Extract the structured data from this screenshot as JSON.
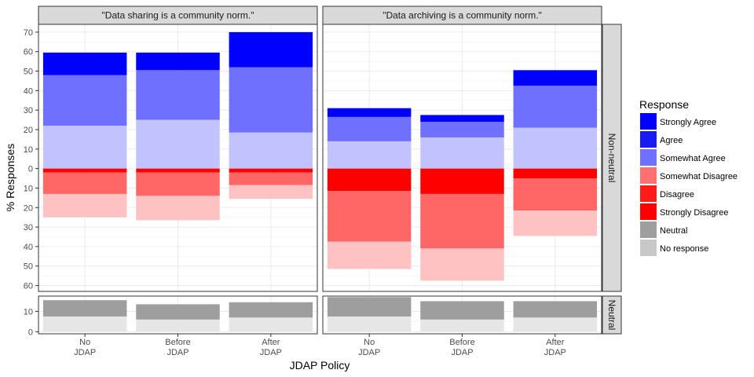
{
  "chart_data": {
    "type": "bar",
    "xlabel": "JDAP Policy",
    "ylabel": "% Responses",
    "categories": [
      [
        "No",
        "JDAP"
      ],
      [
        "Before",
        "JDAP"
      ],
      [
        "After",
        "JDAP"
      ]
    ],
    "column_facets": [
      "\"Data sharing is a community norm.\"",
      "\"Data archiving is a community norm.\""
    ],
    "row_facets": [
      "Non-neutral",
      "Neutral"
    ],
    "legend": {
      "title": "Response",
      "position": "right",
      "items": [
        {
          "label": "Strongly Agree",
          "color": "#0000ff"
        },
        {
          "label": "Agree",
          "color": "#1a1af5"
        },
        {
          "label": "Somewhat Agree",
          "color": "#7070ff"
        },
        {
          "label": "Somewhat Disagree",
          "color": "#ff7070"
        },
        {
          "label": "Disagree",
          "color": "#ff1a1a"
        },
        {
          "label": "Strongly Disagree",
          "color": "#ff0000"
        },
        {
          "label": "Neutral",
          "color": "#9e9e9e"
        },
        {
          "label": "No response",
          "color": "#c8c8c8"
        }
      ]
    },
    "colors": {
      "agree_layers": [
        "#c2c2ff",
        "#7070ff",
        "#0000ff"
      ],
      "disagree_layers": [
        "#ff0000",
        "#ff6666",
        "#ffc2c2"
      ],
      "neutral_layers": [
        "#e6e6e6",
        "#9e9e9e"
      ],
      "strip_fill": "#d9d9d9",
      "panel_grid": "#ebebeb"
    },
    "non_neutral": {
      "ylim": [
        -63,
        74
      ],
      "y_ticks": [
        -60,
        -50,
        -40,
        -30,
        -20,
        -10,
        0,
        10,
        20,
        30,
        40,
        50,
        60,
        70
      ],
      "y_tick_labels": [
        "60",
        "50",
        "40",
        "30",
        "20",
        "10",
        "0",
        "10",
        "20",
        "30",
        "40",
        "50",
        "60",
        "70"
      ],
      "panels": [
        {
          "positive": [
            [
              22,
              48,
              59.5
            ],
            [
              25,
              50.5,
              59.5
            ],
            [
              18.5,
              52,
              70
            ]
          ],
          "negative": [
            [
              2,
              13,
              25
            ],
            [
              2,
              14,
              26.5
            ],
            [
              2,
              8.5,
              15.5
            ]
          ]
        },
        {
          "positive": [
            [
              14,
              26.5,
              31
            ],
            [
              16,
              24,
              27.5
            ],
            [
              21,
              42.5,
              50.5
            ]
          ],
          "negative": [
            [
              11.5,
              37.5,
              51.5
            ],
            [
              13,
              41,
              57.5
            ],
            [
              5,
              21.5,
              34.5
            ]
          ]
        }
      ]
    },
    "neutral": {
      "ylim": [
        -1,
        17.5
      ],
      "y_ticks": [
        0,
        10
      ],
      "y_tick_labels": [
        "0",
        "10"
      ],
      "panels": [
        {
          "stack": [
            [
              7.5,
              15.5
            ],
            [
              6,
              13.5
            ],
            [
              7,
              14.5
            ]
          ]
        },
        {
          "stack": [
            [
              7.5,
              17
            ],
            [
              6,
              15
            ],
            [
              7,
              15
            ]
          ]
        }
      ]
    }
  }
}
